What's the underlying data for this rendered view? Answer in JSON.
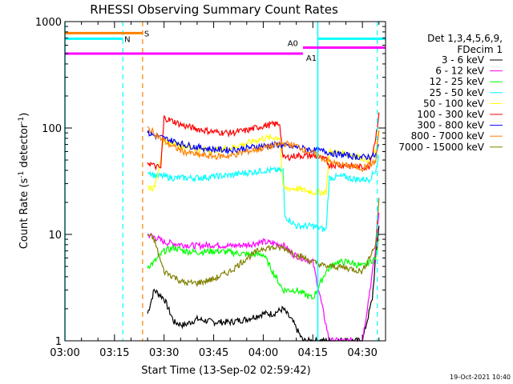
{
  "chart_data": {
    "type": "line",
    "title": "RHESSI Observing Summary Count Rates",
    "xlabel": "Start Time (13-Sep-02 02:59:42)",
    "ylabel_main": "Count Rate (s",
    "ylabel_sup1": "-1",
    "ylabel_mid": " detector",
    "ylabel_sup2": "-1",
    "ylabel_end": ")",
    "yscale": "log",
    "ylim": [
      1,
      1000
    ],
    "xlim_minutes": [
      0,
      97
    ],
    "x_tick_labels": [
      "03:00",
      "03:15",
      "03:30",
      "03:45",
      "04:00",
      "04:15",
      "04:30"
    ],
    "x_tick_minutes": [
      0,
      15,
      30,
      45,
      60,
      75,
      90
    ],
    "y_tick_labels": [
      "1",
      "10",
      "100",
      "1000"
    ],
    "y_tick_values": [
      1,
      10,
      100,
      1000
    ],
    "legend_header": "Det 1,3,4,5,6,9,",
    "legend_header2": "FDecim 1",
    "timestamp": "19-Oct-2021 10:40",
    "series": [
      {
        "name": "3 - 6 keV",
        "color": "#000000",
        "points": [
          [
            24,
            null
          ],
          [
            25,
            1.8
          ],
          [
            27,
            3.0
          ],
          [
            30,
            2.5
          ],
          [
            33,
            1.5
          ],
          [
            36,
            1.4
          ],
          [
            40,
            1.6
          ],
          [
            45,
            1.5
          ],
          [
            50,
            1.5
          ],
          [
            55,
            1.6
          ],
          [
            60,
            1.8
          ],
          [
            63,
            1.8
          ],
          [
            66,
            2.0
          ],
          [
            69,
            1.5
          ],
          [
            72,
            1.0
          ],
          [
            75,
            1.0
          ],
          [
            80,
            1.0
          ],
          [
            85,
            1.0
          ],
          [
            90,
            1.0
          ],
          [
            93,
            2.5
          ],
          [
            94,
            6
          ],
          [
            95,
            12
          ]
        ]
      },
      {
        "name": "6 - 12 keV",
        "color": "#ff00ff",
        "points": [
          [
            25,
            10
          ],
          [
            27,
            9.5
          ],
          [
            30,
            8.5
          ],
          [
            33,
            8.2
          ],
          [
            36,
            8.0
          ],
          [
            40,
            7.8
          ],
          [
            45,
            8.0
          ],
          [
            50,
            7.8
          ],
          [
            55,
            8.0
          ],
          [
            60,
            8.5
          ],
          [
            66,
            8.0
          ],
          [
            69,
            6.5
          ],
          [
            72,
            6.0
          ],
          [
            75,
            5.5
          ],
          [
            80,
            1.0
          ],
          [
            85,
            1.0
          ],
          [
            90,
            1.0
          ],
          [
            94,
            7
          ],
          [
            95,
            16
          ]
        ]
      },
      {
        "name": "12 - 25 keV",
        "color": "#00ff00",
        "points": [
          [
            25,
            5.0
          ],
          [
            27,
            5.5
          ],
          [
            30,
            7.0
          ],
          [
            33,
            7.5
          ],
          [
            36,
            7.0
          ],
          [
            40,
            6.8
          ],
          [
            45,
            7.0
          ],
          [
            50,
            6.8
          ],
          [
            55,
            6.5
          ],
          [
            60,
            6.5
          ],
          [
            66,
            3.0
          ],
          [
            70,
            3.0
          ],
          [
            75,
            2.5
          ],
          [
            79,
            4.5
          ],
          [
            82,
            5.5
          ],
          [
            86,
            5.5
          ],
          [
            90,
            5.0
          ],
          [
            94,
            6
          ],
          [
            95,
            9
          ]
        ]
      },
      {
        "name": "25 - 50 keV",
        "color": "#00ffff",
        "points": [
          [
            25,
            40
          ],
          [
            27,
            36
          ],
          [
            30,
            35
          ],
          [
            33,
            34
          ],
          [
            36,
            34
          ],
          [
            40,
            34
          ],
          [
            45,
            35
          ],
          [
            50,
            36
          ],
          [
            55,
            38
          ],
          [
            60,
            40
          ],
          [
            66,
            40
          ],
          [
            66.5,
            15
          ],
          [
            70,
            12
          ],
          [
            75,
            12
          ],
          [
            79,
            11
          ],
          [
            80,
            34
          ],
          [
            84,
            35
          ],
          [
            88,
            33
          ],
          [
            92,
            33
          ],
          [
            94,
            40
          ],
          [
            95,
            55
          ]
        ]
      },
      {
        "name": "50 - 100 keV",
        "color": "#ffff00",
        "points": [
          [
            25,
            28
          ],
          [
            27,
            27
          ],
          [
            30,
            75
          ],
          [
            33,
            72
          ],
          [
            36,
            68
          ],
          [
            40,
            64
          ],
          [
            45,
            62
          ],
          [
            50,
            65
          ],
          [
            55,
            72
          ],
          [
            60,
            80
          ],
          [
            65,
            82
          ],
          [
            66,
            27
          ],
          [
            70,
            27
          ],
          [
            75,
            25
          ],
          [
            79,
            25
          ],
          [
            80,
            60
          ],
          [
            84,
            58
          ],
          [
            88,
            55
          ],
          [
            92,
            50
          ],
          [
            94,
            60
          ],
          [
            95,
            95
          ]
        ]
      },
      {
        "name": "100 - 300 keV",
        "color": "#ff0000",
        "points": [
          [
            25,
            48
          ],
          [
            27,
            44
          ],
          [
            29,
            42
          ],
          [
            30,
            125
          ],
          [
            33,
            115
          ],
          [
            36,
            105
          ],
          [
            40,
            98
          ],
          [
            45,
            92
          ],
          [
            50,
            90
          ],
          [
            55,
            95
          ],
          [
            60,
            105
          ],
          [
            65,
            110
          ],
          [
            66,
            52
          ],
          [
            70,
            55
          ],
          [
            75,
            55
          ],
          [
            79,
            50
          ],
          [
            80,
            45
          ],
          [
            84,
            45
          ],
          [
            88,
            43
          ],
          [
            92,
            43
          ],
          [
            94,
            80
          ],
          [
            95,
            140
          ]
        ]
      },
      {
        "name": "300 - 800 keV",
        "color": "#0000ff",
        "points": [
          [
            25,
            90
          ],
          [
            27,
            85
          ],
          [
            30,
            80
          ],
          [
            33,
            75
          ],
          [
            36,
            70
          ],
          [
            40,
            66
          ],
          [
            45,
            63
          ],
          [
            50,
            62
          ],
          [
            55,
            65
          ],
          [
            60,
            68
          ],
          [
            65,
            70
          ],
          [
            66,
            68
          ],
          [
            70,
            66
          ],
          [
            75,
            62
          ],
          [
            79,
            60
          ],
          [
            82,
            57
          ],
          [
            86,
            55
          ],
          [
            90,
            53
          ],
          [
            94,
            55
          ],
          [
            95,
            70
          ]
        ]
      },
      {
        "name": "800 - 7000 keV",
        "color": "#ff8000",
        "points": [
          [
            25,
            100
          ],
          [
            27,
            90
          ],
          [
            30,
            75
          ],
          [
            33,
            66
          ],
          [
            36,
            60
          ],
          [
            40,
            56
          ],
          [
            45,
            54
          ],
          [
            50,
            55
          ],
          [
            55,
            60
          ],
          [
            60,
            65
          ],
          [
            65,
            70
          ],
          [
            66,
            72
          ],
          [
            70,
            68
          ],
          [
            75,
            58
          ],
          [
            79,
            50
          ],
          [
            82,
            46
          ],
          [
            86,
            44
          ],
          [
            90,
            42
          ],
          [
            94,
            48
          ],
          [
            95,
            95
          ]
        ]
      },
      {
        "name": "7000 - 15000 keV",
        "color": "#808000",
        "points": [
          [
            25,
            10
          ],
          [
            27,
            9.0
          ],
          [
            29,
            5.5
          ],
          [
            30,
            4.5
          ],
          [
            33,
            4.0
          ],
          [
            36,
            3.5
          ],
          [
            40,
            3.5
          ],
          [
            45,
            3.8
          ],
          [
            50,
            4.5
          ],
          [
            55,
            6.0
          ],
          [
            60,
            7.5
          ],
          [
            65,
            7.5
          ],
          [
            66,
            7.5
          ],
          [
            70,
            6.5
          ],
          [
            75,
            5.5
          ],
          [
            79,
            5.0
          ],
          [
            82,
            5.0
          ],
          [
            86,
            4.8
          ],
          [
            90,
            4.5
          ],
          [
            94,
            8
          ],
          [
            95,
            22
          ]
        ]
      }
    ],
    "flags": [
      {
        "label": "S",
        "color": "#ff8000",
        "level": 780,
        "x_start": 0,
        "x_end": 23.5
      },
      {
        "label": "N",
        "color": "#00ffff",
        "level": 690,
        "x_start": 0,
        "x_end": 17.5
      },
      {
        "label": "",
        "color": "#00ffff",
        "level": 690,
        "x_start": 76.5,
        "x_end": 97
      },
      {
        "label": "",
        "color": "#ff00ff",
        "level": 570,
        "x_start": 72,
        "x_end": 97
      },
      {
        "label": "",
        "color": "#ff00ff",
        "level": 500,
        "x_start": 0,
        "x_end": 72
      },
      {
        "label": "A0",
        "color": "#ff00ff",
        "level": 570,
        "x_start": 72,
        "x_end": 72
      },
      {
        "label": "A1",
        "color": "#ff00ff",
        "level": 500,
        "x_start": 72,
        "x_end": 72
      }
    ],
    "vlines": [
      {
        "x": 17.5,
        "color": "#00ffff",
        "dashed": true
      },
      {
        "x": 23.5,
        "color": "#ff8000",
        "dashed": true
      },
      {
        "x": 94.5,
        "color": "#00ffff",
        "dashed": true
      }
    ],
    "solid_vlines": [
      {
        "x": 0,
        "color": "#00ffff"
      },
      {
        "x": 76.5,
        "color": "#00ffff"
      }
    ]
  }
}
